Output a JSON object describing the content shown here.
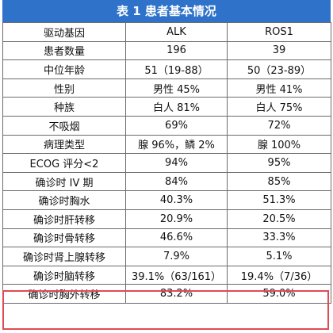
{
  "title": "表 1  患者基本情况",
  "headers": [
    "驱动基因",
    "ALK",
    "ROS1"
  ],
  "rows": [
    [
      "患者数量",
      "196",
      "39"
    ],
    [
      "中位年龄",
      "51（19-88）",
      "50（23-89）"
    ],
    [
      "性别",
      "男性 45%",
      "男性 41%"
    ],
    [
      "种族",
      "白人 81%",
      "白人 75%"
    ],
    [
      "不吸烟",
      "69%",
      "72%"
    ],
    [
      "病理类型",
      "腺 96%，鳞 2%",
      "腺 100%"
    ],
    [
      "ECOG 评分<2",
      "94%",
      "95%"
    ],
    [
      "确诊时 IV 期",
      "84%",
      "85%"
    ],
    [
      "确诊时胸水",
      "40.3%",
      "51.3%"
    ],
    [
      "确诊时肝转移",
      "20.9%",
      "20.5%"
    ],
    [
      "确诊时骨转移",
      "46.6%",
      "33.3%"
    ],
    [
      "确诊时肾上腺转移",
      "7.9%",
      "5.1%"
    ],
    [
      "确诊时脑转移",
      "39.1%（63/161）",
      "19.4%（7/36）"
    ],
    [
      "确诊时胸外转移",
      "83.2%",
      "59.0%"
    ]
  ],
  "colors": {
    "title_bg": "#2f72c9",
    "highlight_border": "#e04a55"
  }
}
